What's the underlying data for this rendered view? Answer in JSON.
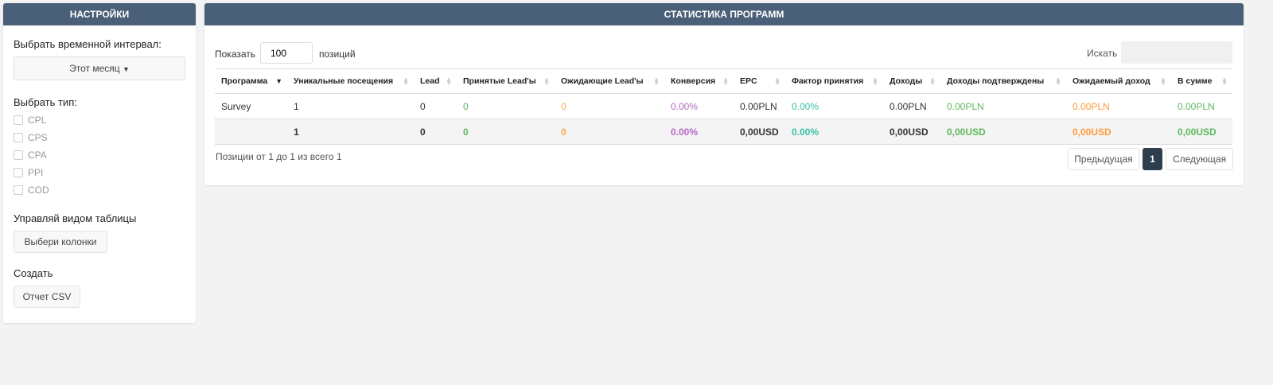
{
  "settings": {
    "title": "НАСТРОЙКИ",
    "interval_label": "Выбрать временной интервал:",
    "interval_value": "Этот месяц",
    "type_label": "Выбрать тип:",
    "types": [
      "CPL",
      "CPS",
      "CPA",
      "PPI",
      "COD"
    ],
    "view_label": "Управляй видом таблицы",
    "columns_button": "Выбери колонки",
    "create_label": "Создать",
    "csv_button": "Отчет CSV"
  },
  "stats": {
    "title": "СТАТИСТИКА ПРОГРАММ",
    "show_label": "Показать",
    "show_value": "100",
    "positions_label": "позиций",
    "search_label": "Искать",
    "search_value": "",
    "columns": [
      "Программа",
      "Уникальные посещения",
      "Lead",
      "Принятые Lead'ы",
      "Ожидающие Lead'ы",
      "Конверсия",
      "EPC",
      "Фактор принятия",
      "Доходы",
      "Доходы подтверждены",
      "Ожидаемый доход",
      "В сумме"
    ],
    "rows": [
      [
        "Survey",
        "1",
        "0",
        "0",
        "0",
        "0.00%",
        "0.00PLN",
        "0.00%",
        "0.00PLN",
        "0.00PLN",
        "0.00PLN",
        "0.00PLN"
      ]
    ],
    "total": [
      "",
      "1",
      "0",
      "0",
      "0",
      "0.00%",
      "0,00USD",
      "0.00%",
      "0,00USD",
      "0,00USD",
      "0,00USD",
      "0,00USD"
    ],
    "info": "Позиции от 1 до 1 из всего 1",
    "prev": "Предыдущая",
    "page": "1",
    "next": "Следующая"
  },
  "colors": {
    "header": "#4a5f78",
    "green": "#5cb85c",
    "yellow": "#f0ad4e",
    "purple": "#b667c5",
    "teal": "#3bbfa5",
    "orange": "#ff9a3c"
  }
}
